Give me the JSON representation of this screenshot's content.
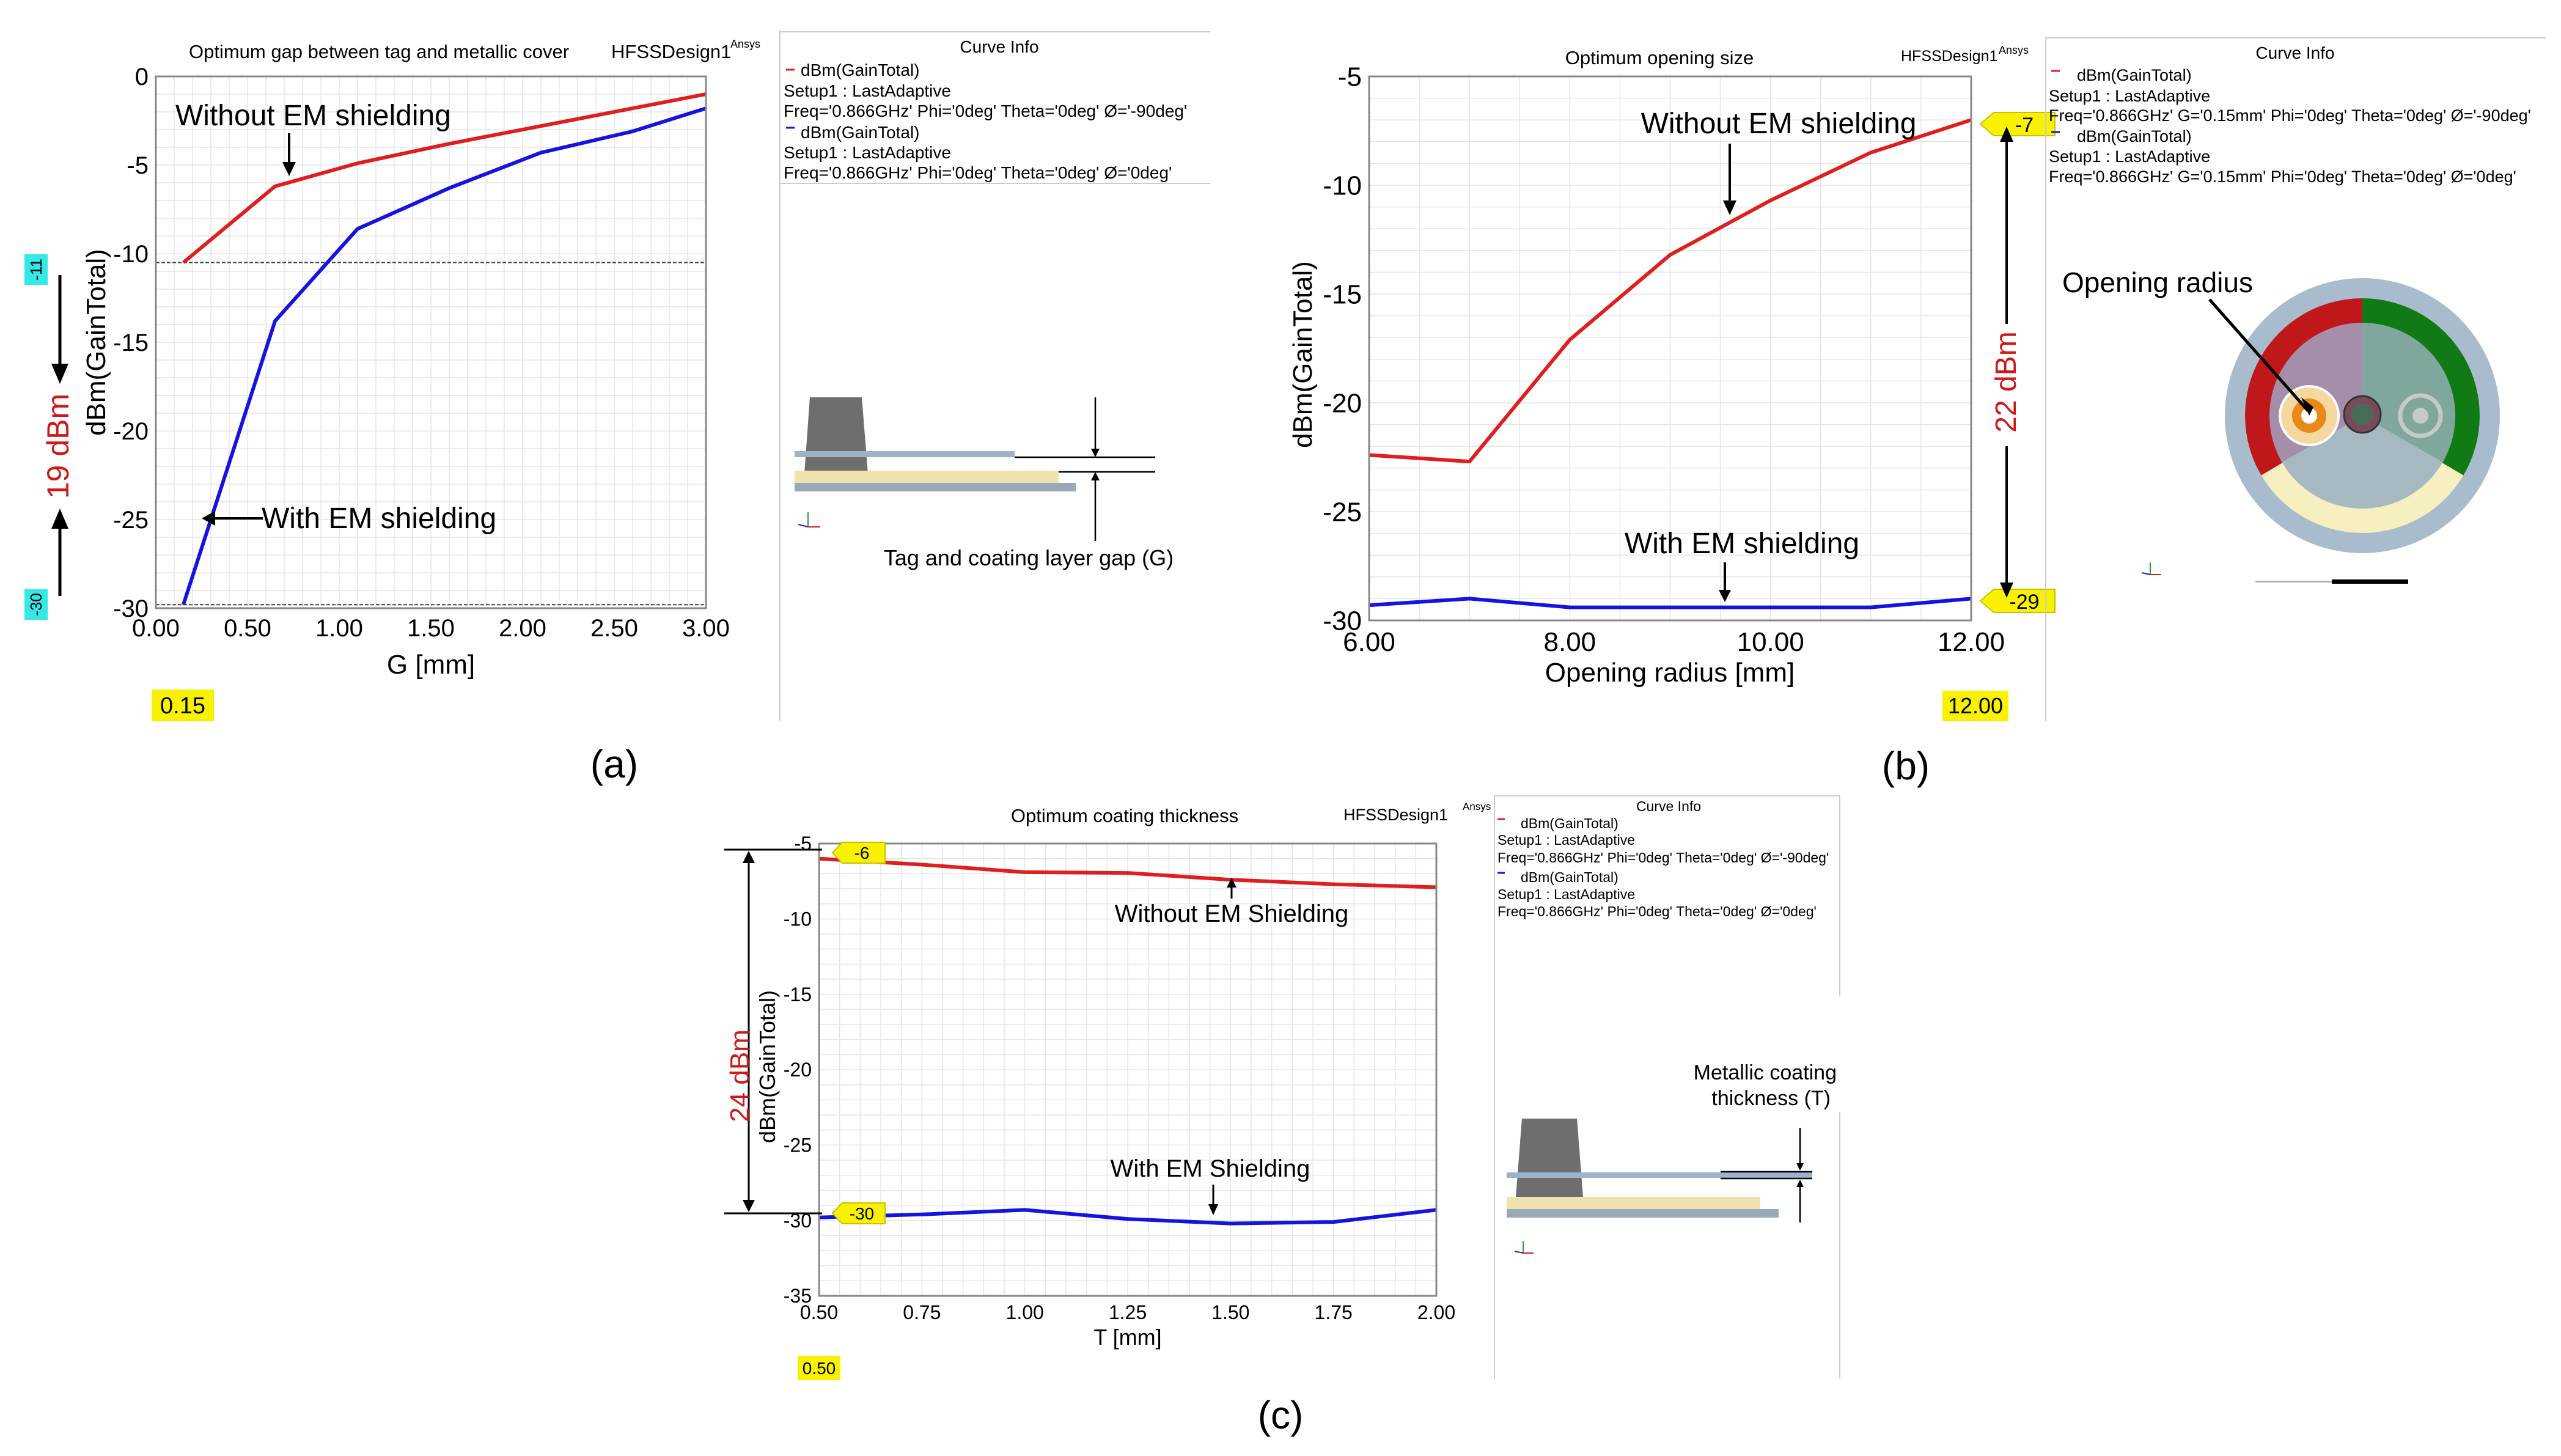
{
  "colors": {
    "with_em": "#1414e0",
    "without_em": "#e01e1e",
    "annot_red": "#d01818",
    "yellow_tag": "#f8f200",
    "cyan_tag": "#35e8e8",
    "grid": "#e6e6e6"
  },
  "chart_data": [
    {
      "id": "a",
      "type": "line",
      "title": "Optimum gap between tag and metallic cover",
      "design": "HFSSDesign1",
      "ansys": "Ansys",
      "xlabel": "G [mm]",
      "ylabel": "dBm(GainTotal)",
      "xlim": [
        0,
        3
      ],
      "ylim": [
        -30,
        0
      ],
      "xticks": [
        0,
        0.5,
        1,
        1.5,
        2,
        2.5,
        3
      ],
      "xtick_labels": [
        "0.00",
        "0.50",
        "1.00",
        "1.50",
        "2.00",
        "2.50",
        "3.00"
      ],
      "yticks": [
        0,
        -5,
        -10,
        -15,
        -20,
        -25,
        -30
      ],
      "ytick_labels": [
        "0",
        "-5",
        "-10",
        "-15",
        "-20",
        "-25",
        "-30"
      ],
      "hlines": [
        -10.5,
        -29.8
      ],
      "series": [
        {
          "name": "Without EM shielding",
          "color": "#e01e1e",
          "x": [
            0.15,
            0.65,
            1.1,
            1.6,
            2.1,
            2.6,
            3.0
          ],
          "y": [
            -10.5,
            -6.2,
            -4.9,
            -3.8,
            -2.8,
            -1.8,
            -1.0
          ]
        },
        {
          "name": "With EM shielding",
          "color": "#1414e0",
          "x": [
            0.15,
            0.65,
            1.1,
            1.6,
            2.1,
            2.6,
            3.0
          ],
          "y": [
            -29.8,
            -13.8,
            -8.6,
            -6.3,
            -4.3,
            -3.1,
            -1.8
          ]
        }
      ],
      "annotations": [
        {
          "text": "Without EM shielding",
          "x": 0.65,
          "y": -6.2
        },
        {
          "text": "With EM shielding",
          "x": 0.35,
          "y": -25
        }
      ],
      "x_marker": "0.15",
      "y_tags": [
        "-11",
        "-30"
      ],
      "difference_label": "19 dBm",
      "legend": {
        "title": "Curve Info",
        "entries": [
          {
            "name": "dBm(GainTotal)",
            "setup": "Setup1 : LastAdaptive",
            "freq": "Freq='0.866GHz' Phi='0deg' Theta='0deg' Ø='-90deg'",
            "color": "#e01e1e"
          },
          {
            "name": "dBm(GainTotal)",
            "setup": "Setup1 : LastAdaptive",
            "freq": "Freq='0.866GHz' Phi='0deg' Theta='0deg' Ø='0deg'",
            "color": "#1414e0"
          }
        ]
      },
      "inset_caption": "Tag and coating layer gap (G)",
      "panel_label": "(a)"
    },
    {
      "id": "b",
      "type": "line",
      "title": "Optimum opening size",
      "design": "HFSSDesign1",
      "ansys": "Ansys",
      "xlabel": "Opening radius [mm]",
      "ylabel": "dBm(GainTotal)",
      "xlim": [
        6,
        12
      ],
      "ylim": [
        -30,
        -5
      ],
      "xticks": [
        6,
        8,
        10,
        12
      ],
      "xtick_labels": [
        "6.00",
        "8.00",
        "10.00",
        "12.00"
      ],
      "yticks": [
        -5,
        -10,
        -15,
        -20,
        -25,
        -30
      ],
      "ytick_labels": [
        "-5",
        "-10",
        "-15",
        "-20",
        "-25",
        "-30"
      ],
      "series": [
        {
          "name": "Without EM shielding",
          "color": "#e01e1e",
          "x": [
            6,
            7,
            8,
            9,
            10,
            11,
            12
          ],
          "y": [
            -22.4,
            -22.7,
            -17.1,
            -13.2,
            -10.7,
            -8.5,
            -7.0
          ]
        },
        {
          "name": "With EM shielding",
          "color": "#1414e0",
          "x": [
            6,
            7,
            8,
            9,
            10,
            11,
            12
          ],
          "y": [
            -29.3,
            -29.0,
            -29.4,
            -29.4,
            -29.4,
            -29.4,
            -29.0
          ]
        }
      ],
      "annotations": [
        {
          "text": "Without EM shielding",
          "x": 9.55,
          "y": -12.4
        },
        {
          "text": "With EM shielding",
          "x": 9.55,
          "y": -29.3
        }
      ],
      "x_marker": "12.00",
      "y_tags": [
        "-7",
        "-29"
      ],
      "difference_label": "22 dBm",
      "legend": {
        "title": "Curve Info",
        "entries": [
          {
            "name": "dBm(GainTotal)",
            "setup": "Setup1 : LastAdaptive",
            "freq": "Freq='0.866GHz' G='0.15mm' Phi='0deg' Theta='0deg' Ø='-90deg'",
            "color": "#e01e1e"
          },
          {
            "name": "dBm(GainTotal)",
            "setup": "Setup1 : LastAdaptive",
            "freq": "Freq='0.866GHz' G='0.15mm' Phi='0deg' Theta='0deg' Ø='0deg'",
            "color": "#1414e0"
          }
        ]
      },
      "inset_caption": "Opening radius",
      "panel_label": "(b)"
    },
    {
      "id": "c",
      "type": "line",
      "title": "Optimum coating thickness",
      "design": "HFSSDesign1",
      "ansys": "Ansys",
      "xlabel": "T [mm]",
      "ylabel": "dBm(GainTotal)",
      "xlim": [
        0.5,
        2.0
      ],
      "ylim": [
        -35,
        -5
      ],
      "xticks": [
        0.5,
        0.75,
        1.0,
        1.25,
        1.5,
        1.75,
        2.0
      ],
      "xtick_labels": [
        "0.50",
        "0.75",
        "1.00",
        "1.25",
        "1.50",
        "1.75",
        "2.00"
      ],
      "yticks": [
        -5,
        -10,
        -15,
        -20,
        -25,
        -30,
        -35
      ],
      "ytick_labels": [
        "-5",
        "-10",
        "-15",
        "-20",
        "-25",
        "-30",
        "-35"
      ],
      "series": [
        {
          "name": "Without EM Shielding",
          "color": "#e01e1e",
          "x": [
            0.5,
            0.75,
            1.0,
            1.25,
            1.5,
            1.75,
            2.0
          ],
          "y": [
            -6.0,
            -6.4,
            -6.9,
            -6.95,
            -7.4,
            -7.7,
            -7.9
          ]
        },
        {
          "name": "With EM Shielding",
          "color": "#1414e0",
          "x": [
            0.5,
            0.75,
            1.0,
            1.25,
            1.5,
            1.75,
            2.0
          ],
          "y": [
            -29.8,
            -29.6,
            -29.3,
            -29.9,
            -30.2,
            -30.1,
            -29.3
          ]
        }
      ],
      "annotations": [
        {
          "text": "Without EM Shielding",
          "x": 1.5,
          "y": -7.4
        },
        {
          "text": "With EM Shielding",
          "x": 1.45,
          "y": -30.2
        }
      ],
      "x_marker": "0.50",
      "y_tags": [
        "-6",
        "-30"
      ],
      "difference_label": "24 dBm",
      "legend": {
        "title": "Curve Info",
        "entries": [
          {
            "name": "dBm(GainTotal)",
            "setup": "Setup1 : LastAdaptive",
            "freq": "Freq='0.866GHz' Phi='0deg' Theta='0deg' Ø='-90deg'",
            "color": "#e01e1e"
          },
          {
            "name": "dBm(GainTotal)",
            "setup": "Setup1 : LastAdaptive",
            "freq": "Freq='0.866GHz' Phi='0deg' Theta='0deg' Ø='0deg'",
            "color": "#1414e0"
          }
        ]
      },
      "inset_caption": "Metallic coating thickness (T)",
      "inset_caption_lines": [
        "Metallic coating",
        "thickness (T)"
      ],
      "panel_label": "(c)"
    }
  ]
}
